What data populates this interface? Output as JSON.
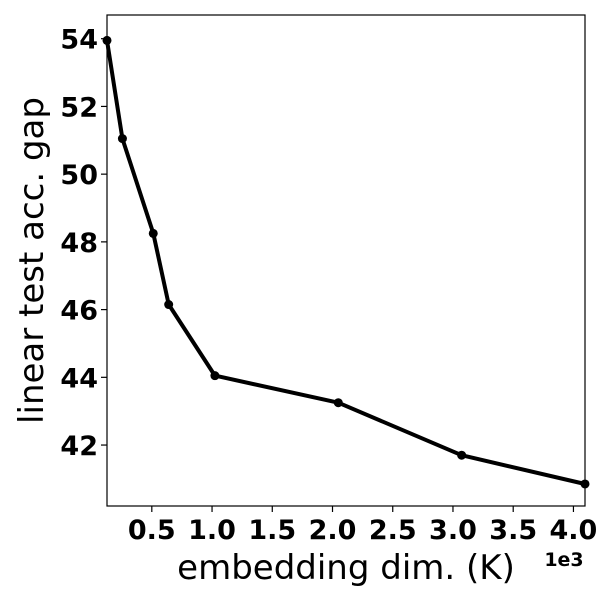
{
  "chart_data": {
    "type": "line",
    "xlabel": "embedding dim. (K)",
    "ylabel": "linear test acc. gap",
    "x_offset_label": "1e3",
    "xlim": [
      0.128,
      4.096
    ],
    "ylim": [
      40.2,
      54.7
    ],
    "x_ticks": [
      0.5,
      1.0,
      1.5,
      2.0,
      2.5,
      3.0,
      3.5,
      4.0
    ],
    "x_tick_labels": [
      "0.5",
      "1.0",
      "1.5",
      "2.0",
      "2.5",
      "3.0",
      "3.5",
      "4.0"
    ],
    "y_ticks": [
      42,
      44,
      46,
      48,
      50,
      52,
      54
    ],
    "y_tick_labels": [
      "42",
      "44",
      "46",
      "48",
      "50",
      "52",
      "54"
    ],
    "grid": false,
    "series": [
      {
        "color": "#000000",
        "x": [
          0.128,
          0.256,
          0.512,
          0.64,
          1.024,
          2.048,
          3.072,
          4.096
        ],
        "y": [
          53.95,
          51.05,
          48.25,
          46.15,
          44.05,
          43.25,
          41.7,
          40.85
        ]
      }
    ]
  }
}
